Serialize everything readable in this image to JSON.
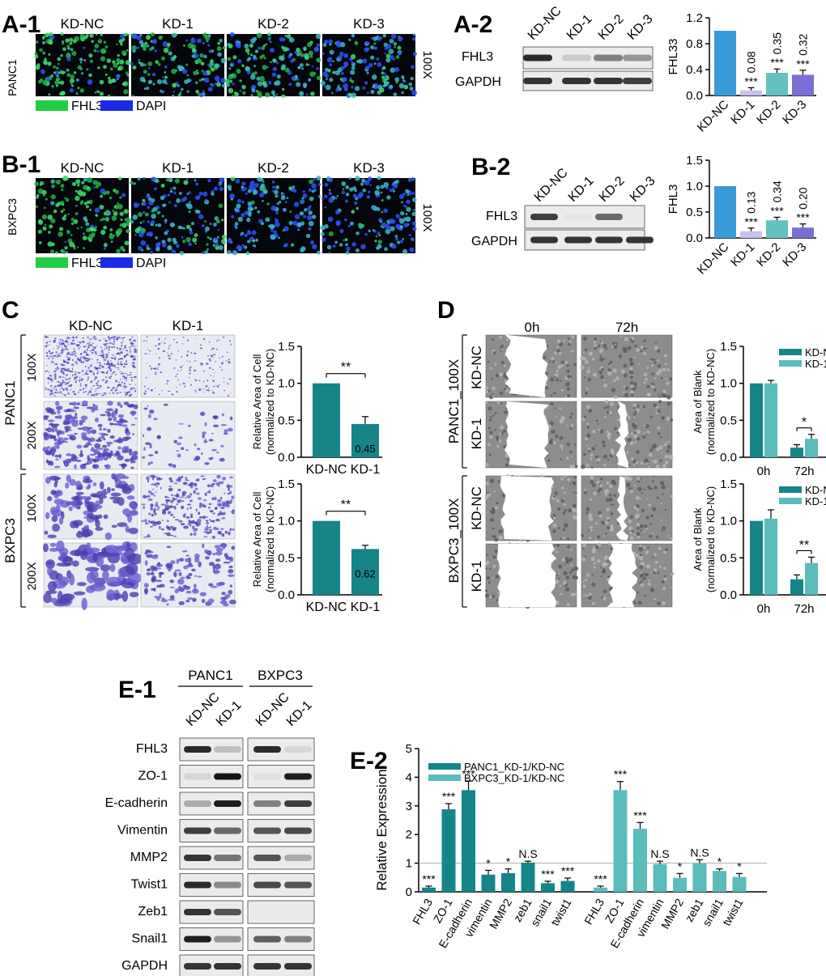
{
  "colors": {
    "teal": "#15858a",
    "teal_light": "#5bbcbc",
    "blue": "#3a9bd8",
    "lavender": "#c6c2ec",
    "mid_teal": "#63c2c0",
    "purple": "#7a6fd6",
    "fhl3_green": "#22cc44",
    "dapi_blue": "#1a2be6"
  },
  "panels": {
    "a1": {
      "label": "A-1",
      "row": "PANC1",
      "cols": [
        "KD-NC",
        "KD-1",
        "KD-2",
        "KD-3"
      ],
      "mag": "100X",
      "legend": [
        "FHL3",
        "DAPI"
      ]
    },
    "a2": {
      "label": "A-2",
      "lanes": [
        "KD-NC",
        "KD-1",
        "KD-2",
        "KD-3"
      ],
      "bands": [
        "FHL3",
        "GAPDH"
      ]
    },
    "b1": {
      "label": "B-1",
      "row": "BXPC3",
      "cols": [
        "KD-NC",
        "KD-1",
        "KD-2",
        "KD-3"
      ],
      "mag": "100X",
      "legend": [
        "FHL3",
        "DAPI"
      ]
    },
    "b2": {
      "label": "B-2",
      "lanes": [
        "KD-NC",
        "KD-1",
        "KD-2",
        "KD-3"
      ],
      "bands": [
        "FHL3",
        "GAPDH"
      ]
    },
    "c": {
      "label": "C",
      "cols": [
        "KD-NC",
        "KD-1"
      ],
      "groups": [
        "PANC1",
        "BXPC3"
      ],
      "mags": [
        "100X",
        "200X"
      ]
    },
    "d": {
      "label": "D",
      "cols": [
        "0h",
        "72h"
      ],
      "groups": [
        "PANC1_100X",
        "BXPC3_100X"
      ],
      "rows": [
        "KD-NC",
        "KD-1"
      ]
    },
    "e1": {
      "label": "E-1",
      "groups": [
        "PANC1",
        "BXPC3"
      ],
      "lanes": [
        "KD-NC",
        "KD-1",
        "KD-NC",
        "KD-1"
      ],
      "bands": [
        "FHL3",
        "ZO-1",
        "E-cadherin",
        "Vimentin",
        "MMP2",
        "Twist1",
        "Zeb1",
        "Snail1",
        "GAPDH"
      ]
    },
    "e2": {
      "label": "E-2"
    }
  },
  "chart_data": [
    {
      "id": "a2",
      "type": "bar",
      "categories": [
        "KD-NC",
        "KD-1",
        "KD-2",
        "KD-3"
      ],
      "values": [
        1.0,
        0.08,
        0.35,
        0.32
      ],
      "errors": [
        0,
        0.04,
        0.06,
        0.07
      ],
      "labels": [
        "",
        "0.08",
        "0.35",
        "0.32"
      ],
      "sig": [
        "",
        "***",
        "***",
        "***"
      ],
      "ylabel": "FHL33",
      "ylim": [
        0,
        1.2
      ],
      "yticks": [
        "0.0",
        "0.4",
        "0.8",
        "1.2"
      ]
    },
    {
      "id": "b2",
      "type": "bar",
      "categories": [
        "KD-NC",
        "KD-1",
        "KD-2",
        "KD-3"
      ],
      "values": [
        1.0,
        0.13,
        0.34,
        0.2
      ],
      "errors": [
        0,
        0.06,
        0.06,
        0.07
      ],
      "labels": [
        "",
        "0.13",
        "0.34",
        "0.20"
      ],
      "sig": [
        "",
        "***",
        "***",
        "***"
      ],
      "ylabel": "FHL3",
      "ylim": [
        0,
        1.5
      ],
      "yticks": [
        "0.0",
        "0.5",
        "1.0",
        "1.5"
      ]
    },
    {
      "id": "c_panc1",
      "type": "bar",
      "categories": [
        "KD-NC",
        "KD-1"
      ],
      "values": [
        1.0,
        0.45
      ],
      "errors": [
        0,
        0.1
      ],
      "labels": [
        "",
        "0.45"
      ],
      "sig": "**",
      "ylabel": [
        "Relative Area of Cell",
        "(normalized to KD-NC)"
      ],
      "ylim": [
        0,
        1.5
      ],
      "yticks": [
        "0.0",
        "0.5",
        "1.0",
        "1.5"
      ]
    },
    {
      "id": "c_bxpc3",
      "type": "bar",
      "categories": [
        "KD-NC",
        "KD-1"
      ],
      "values": [
        1.0,
        0.62
      ],
      "errors": [
        0,
        0.05
      ],
      "labels": [
        "",
        "0.62"
      ],
      "sig": "**",
      "ylabel": [
        "Relative Area of Cell",
        "(normalized to KD-NC)"
      ],
      "ylim": [
        0,
        1.5
      ],
      "yticks": [
        "0.0",
        "0.5",
        "1.0",
        "1.5"
      ]
    },
    {
      "id": "d_panc1",
      "type": "bar",
      "categories": [
        "0h",
        "72h"
      ],
      "series": [
        {
          "name": "KD-NC",
          "values": [
            1.0,
            0.13
          ],
          "errors": [
            0,
            0.04
          ]
        },
        {
          "name": "KD-1",
          "values": [
            1.0,
            0.25
          ],
          "errors": [
            0.04,
            0.06
          ]
        }
      ],
      "sig": "*",
      "ylabel": [
        "Area of Blank",
        "(normalized to KD-NC)"
      ],
      "ylim": [
        0,
        1.5
      ],
      "yticks": [
        "0.0",
        "0.5",
        "1.0",
        "1.5"
      ]
    },
    {
      "id": "d_bxpc3",
      "type": "bar",
      "categories": [
        "0h",
        "72h"
      ],
      "series": [
        {
          "name": "KD-NC",
          "values": [
            1.0,
            0.21
          ],
          "errors": [
            0,
            0.06
          ]
        },
        {
          "name": "KD-1",
          "values": [
            1.03,
            0.43
          ],
          "errors": [
            0.12,
            0.08
          ]
        }
      ],
      "sig": "**",
      "ylabel": [
        "Area of Blank",
        "(normalized to KD-NC)"
      ],
      "ylim": [
        0,
        1.5
      ],
      "yticks": [
        "0.0",
        "0.5",
        "1.0",
        "1.5"
      ]
    },
    {
      "id": "e2",
      "type": "bar",
      "ylabel": "Relative Expression",
      "ylim": [
        0,
        5
      ],
      "yticks": [
        "0",
        "1",
        "2",
        "3",
        "4",
        "5"
      ],
      "reference_line": 1,
      "series": [
        {
          "name": "PANC1_KD-1/KD-NC",
          "categories": [
            "FHL3",
            "ZO-1",
            "E-cadherin",
            "vimentin",
            "MMP2",
            "zeb1",
            "snail1",
            "twist1"
          ],
          "values": [
            0.15,
            2.88,
            3.55,
            0.6,
            0.65,
            1.02,
            0.3,
            0.38
          ],
          "errors": [
            0.05,
            0.2,
            0.32,
            0.15,
            0.15,
            0.05,
            0.07,
            0.1
          ],
          "sig": [
            "***",
            "***",
            "***",
            "*",
            "*",
            "N.S",
            "***",
            "***"
          ]
        },
        {
          "name": "BXPC3_KD-1/KD-NC",
          "categories": [
            "FHL3",
            "ZO-1",
            "E-cadherin",
            "vimentin",
            "MMP2",
            "zeb1",
            "snail1",
            "twist1"
          ],
          "values": [
            0.15,
            3.55,
            2.2,
            0.97,
            0.49,
            1.0,
            0.73,
            0.52
          ],
          "errors": [
            0.05,
            0.3,
            0.22,
            0.1,
            0.15,
            0.12,
            0.07,
            0.12
          ],
          "sig": [
            "***",
            "***",
            "***",
            "N.S",
            "*",
            "N.S",
            "*",
            "*"
          ]
        }
      ]
    }
  ]
}
